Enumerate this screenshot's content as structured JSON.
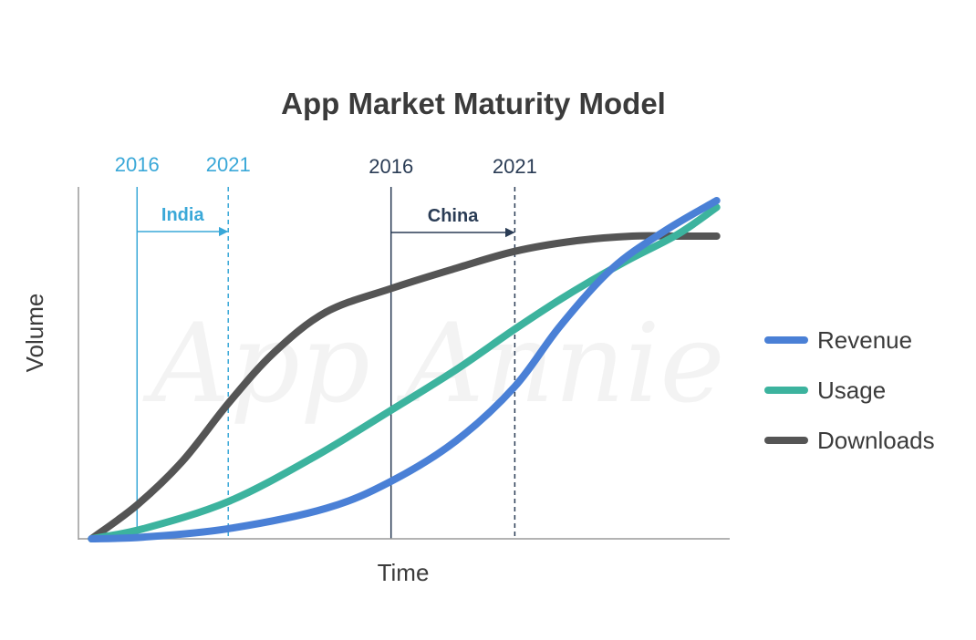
{
  "chart_data": {
    "type": "line",
    "title": "App Market Maturity Model",
    "xlabel": "Time",
    "ylabel": "Volume",
    "x_ticks_shown": false,
    "y_ticks_shown": false,
    "grid": false,
    "legend_position": "right",
    "watermark": "App Annie",
    "colors": {
      "india": "#3aa8d8",
      "china": "#2a3c55",
      "axis": "#9a9a9a"
    },
    "markers": [
      {
        "region": "India",
        "start_label": "2016",
        "end_label": "2021",
        "start_x": 0.09,
        "end_x": 0.23
      },
      {
        "region": "China",
        "start_label": "2016",
        "end_label": "2021",
        "start_x": 0.48,
        "end_x": 0.67
      }
    ],
    "series": [
      {
        "name": "Revenue",
        "color": "#4a80d6",
        "points": [
          [
            0.02,
            0.0
          ],
          [
            0.1,
            0.005
          ],
          [
            0.23,
            0.03
          ],
          [
            0.38,
            0.09
          ],
          [
            0.48,
            0.17
          ],
          [
            0.58,
            0.29
          ],
          [
            0.67,
            0.45
          ],
          [
            0.74,
            0.63
          ],
          [
            0.82,
            0.8
          ],
          [
            0.9,
            0.91
          ],
          [
            0.98,
            1.0
          ]
        ]
      },
      {
        "name": "Usage",
        "color": "#3cb39e",
        "points": [
          [
            0.02,
            0.0
          ],
          [
            0.1,
            0.03
          ],
          [
            0.23,
            0.11
          ],
          [
            0.36,
            0.24
          ],
          [
            0.48,
            0.38
          ],
          [
            0.58,
            0.5
          ],
          [
            0.67,
            0.62
          ],
          [
            0.75,
            0.72
          ],
          [
            0.84,
            0.82
          ],
          [
            0.92,
            0.9
          ],
          [
            0.98,
            0.98
          ]
        ]
      },
      {
        "name": "Downloads",
        "color": "#555555",
        "points": [
          [
            0.02,
            0.0
          ],
          [
            0.09,
            0.1
          ],
          [
            0.16,
            0.23
          ],
          [
            0.23,
            0.4
          ],
          [
            0.3,
            0.55
          ],
          [
            0.38,
            0.67
          ],
          [
            0.48,
            0.74
          ],
          [
            0.58,
            0.8
          ],
          [
            0.67,
            0.85
          ],
          [
            0.76,
            0.88
          ],
          [
            0.85,
            0.895
          ],
          [
            0.92,
            0.895
          ],
          [
            0.98,
            0.895
          ]
        ]
      }
    ]
  }
}
